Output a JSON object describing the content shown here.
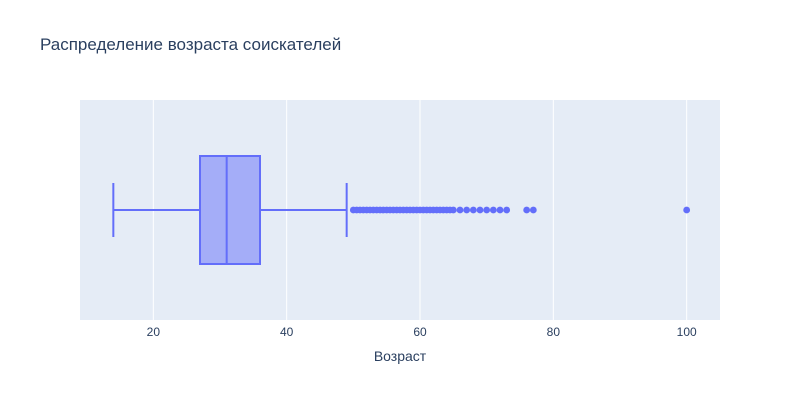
{
  "chart_data": {
    "type": "box",
    "title": "Распределение возраста соискателей",
    "xlabel": "Возраст",
    "ylabel": "",
    "xlim": [
      9,
      105
    ],
    "xticks": [
      20,
      40,
      60,
      80,
      100
    ],
    "grid": true,
    "orientation": "horizontal",
    "box": {
      "lower_fence": 14,
      "q1": 27,
      "median": 31,
      "q3": 36,
      "upper_fence": 49
    },
    "outliers": [
      50,
      50.5,
      51,
      51.5,
      52,
      52.5,
      53,
      53.5,
      54,
      54.5,
      55,
      55.5,
      56,
      56.5,
      57,
      57.5,
      58,
      58.5,
      59,
      59.5,
      60,
      60.5,
      61,
      61.5,
      62,
      62.5,
      63,
      63.5,
      64,
      64.5,
      65,
      66,
      67,
      68,
      69,
      70,
      71,
      72,
      73,
      76,
      77,
      100
    ],
    "colors": {
      "series": "#636efa",
      "box_fill": "rgba(99,110,250,0.5)",
      "plot_bg": "#e5ecf6",
      "grid": "#ffffff",
      "text": "#2a3f5f"
    }
  }
}
